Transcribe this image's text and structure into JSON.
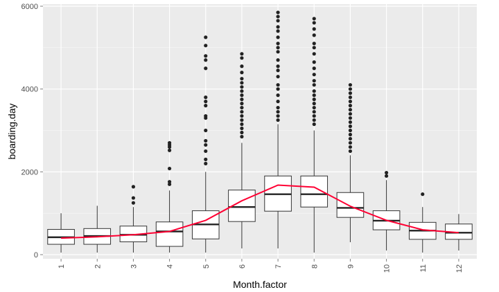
{
  "chart_data": {
    "type": "boxplot",
    "xlabel": "Month.factor",
    "ylabel": "boarding.day",
    "ylim": [
      -100,
      6050
    ],
    "y_ticks": [
      0,
      2000,
      4000,
      6000
    ],
    "y_tick_labels": [
      "0",
      "2000",
      "4000",
      "6000"
    ],
    "categories": [
      "1",
      "2",
      "3",
      "4",
      "5",
      "6",
      "7",
      "8",
      "9",
      "10",
      "11",
      "12"
    ],
    "boxes": [
      {
        "category": "1",
        "min": 50,
        "q1": 250,
        "median": 420,
        "q3": 610,
        "max": 1000,
        "outliers": []
      },
      {
        "category": "2",
        "min": 50,
        "q1": 250,
        "median": 450,
        "q3": 630,
        "max": 1180,
        "outliers": []
      },
      {
        "category": "3",
        "min": 50,
        "q1": 310,
        "median": 480,
        "q3": 690,
        "max": 1150,
        "outliers": [
          1250,
          1370,
          1640
        ]
      },
      {
        "category": "4",
        "min": 50,
        "q1": 200,
        "median": 560,
        "q3": 790,
        "max": 1550,
        "outliers": [
          1700,
          1760,
          2080,
          2520,
          2600,
          2650,
          2700
        ]
      },
      {
        "category": "5",
        "min": 50,
        "q1": 380,
        "median": 730,
        "q3": 1060,
        "max": 2000,
        "outliers": [
          2200,
          2300,
          2500,
          2650,
          2750,
          3000,
          3300,
          3350,
          3600,
          3700,
          3800,
          4500,
          4700,
          4800,
          5050,
          5250
        ]
      },
      {
        "category": "6",
        "min": 150,
        "q1": 800,
        "median": 1150,
        "q3": 1560,
        "max": 2700,
        "outliers": [
          2850,
          2950,
          3050,
          3150,
          3250,
          3350,
          3450,
          3550,
          3650,
          3750,
          3850,
          3950,
          4050,
          4150,
          4250,
          4400,
          4550,
          4750,
          4850
        ]
      },
      {
        "category": "7",
        "min": 150,
        "q1": 1050,
        "median": 1460,
        "q3": 1900,
        "max": 3150,
        "outliers": [
          3250,
          3350,
          3450,
          3550,
          3700,
          3850,
          4000,
          4100,
          4300,
          4450,
          4550,
          4700,
          4900,
          5000,
          5100,
          5250,
          5400,
          5500,
          5650,
          5750,
          5850
        ]
      },
      {
        "category": "8",
        "min": 50,
        "q1": 1150,
        "median": 1460,
        "q3": 1900,
        "max": 3000,
        "outliers": [
          3150,
          3250,
          3350,
          3450,
          3550,
          3650,
          3750,
          3850,
          3950,
          4100,
          4200,
          4350,
          4500,
          4650,
          4850,
          5000,
          5100,
          5300,
          5450,
          5600,
          5700
        ]
      },
      {
        "category": "9",
        "min": 300,
        "q1": 900,
        "median": 1130,
        "q3": 1500,
        "max": 2400,
        "outliers": [
          2500,
          2600,
          2700,
          2800,
          2900,
          3000,
          3100,
          3200,
          3300,
          3400,
          3500,
          3600,
          3700,
          3800,
          3900,
          4000,
          4100
        ]
      },
      {
        "category": "10",
        "min": 100,
        "q1": 600,
        "median": 820,
        "q3": 1060,
        "max": 1800,
        "outliers": [
          1900,
          1980
        ]
      },
      {
        "category": "11",
        "min": 50,
        "q1": 370,
        "median": 580,
        "q3": 780,
        "max": 1150,
        "outliers": [
          1460
        ]
      },
      {
        "category": "12",
        "min": 100,
        "q1": 370,
        "median": 530,
        "q3": 740,
        "max": 980,
        "outliers": []
      }
    ],
    "mean_line": {
      "color": "#ff0033",
      "values": [
        400,
        430,
        480,
        560,
        830,
        1300,
        1680,
        1630,
        1170,
        830,
        600,
        530
      ]
    },
    "grid": true,
    "panel_background": "#ebebeb",
    "grid_color": "#ffffff",
    "box_fill": "#ffffff",
    "box_stroke": "#333333",
    "outlier_color": "#222222"
  }
}
